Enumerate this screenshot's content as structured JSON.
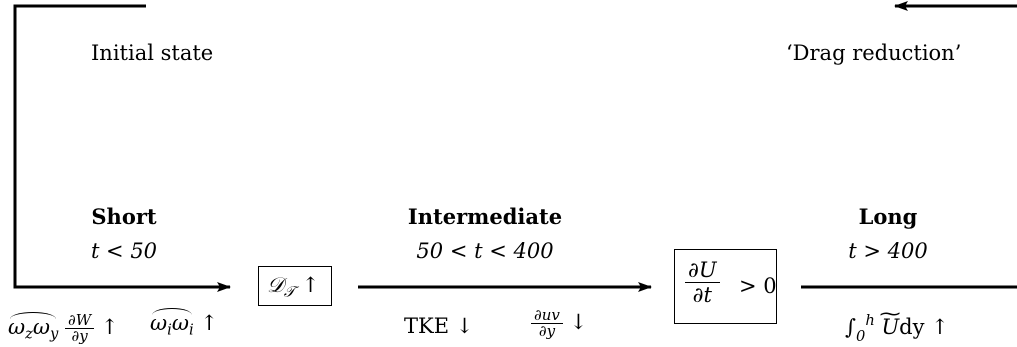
{
  "stages": {
    "initial": {
      "label": "Initial state"
    },
    "drag": {
      "label": "‘Drag reduction’"
    },
    "short": {
      "title": "Short",
      "time": "t < 50"
    },
    "intermediate": {
      "title": "Intermediate",
      "time": "50 < t < 400"
    },
    "long": {
      "title": "Long",
      "time": "t > 400"
    }
  },
  "boxes": {
    "diffusion": {
      "symbol": "𝒟",
      "subscript": "𝒯",
      "arrow": "↑"
    },
    "dUdt": {
      "numerator": "∂U",
      "denominator": "∂t",
      "relation": "> 0"
    }
  },
  "mechanisms": {
    "short_a": {
      "w1": "ω",
      "s1": "z",
      "w2": "ω",
      "s2": "y",
      "num": "∂W",
      "den": "∂y",
      "arrow": "↑"
    },
    "short_b": {
      "w1": "ω",
      "s1": "i",
      "w2": "ω",
      "s2": "i",
      "arrow": "↑"
    },
    "intermediate_a": {
      "text": "TKE ↓"
    },
    "intermediate_b": {
      "num": "∂uv",
      "den": "∂y",
      "arrow": "↓"
    },
    "long_a": {
      "integral": "∫",
      "lower": "0",
      "upper": "h",
      "U": "U",
      "rest": "dy ↑"
    }
  }
}
